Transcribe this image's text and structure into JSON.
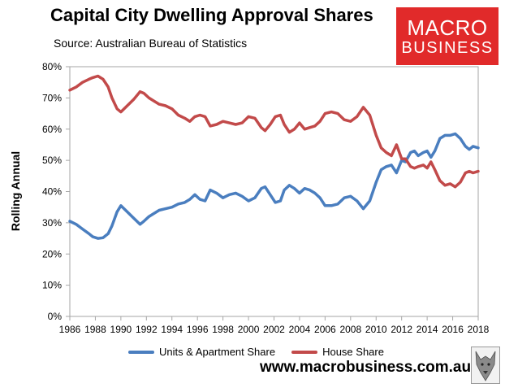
{
  "header": {
    "title": "Capital City Dwelling Approval Shares",
    "source": "Source: Australian Bureau of Statistics"
  },
  "logo": {
    "line1": "MACRO",
    "line2": "BUSINESS",
    "bg_color": "#e12a2a"
  },
  "footer": {
    "website": "www.macrobusiness.com.au"
  },
  "chart_data": {
    "type": "line",
    "title": "Capital City Dwelling Approval Shares",
    "xlabel": "",
    "ylabel": "Rolling Annual",
    "xlim": [
      1986,
      2018
    ],
    "ylim": [
      0,
      80
    ],
    "x_ticks": [
      "1986",
      "1988",
      "1990",
      "1992",
      "1994",
      "1996",
      "1998",
      "2000",
      "2002",
      "2004",
      "2006",
      "2008",
      "2010",
      "2012",
      "2014",
      "2016",
      "2018"
    ],
    "y_ticks": [
      "0%",
      "10%",
      "20%",
      "30%",
      "40%",
      "50%",
      "60%",
      "70%",
      "80%"
    ],
    "grid": false,
    "legend_position": "bottom",
    "series": [
      {
        "name": "Units & Apartment Share",
        "color": "#4a7ebf",
        "x": [
          1986.0,
          1986.5,
          1987.0,
          1987.5,
          1987.8,
          1988.2,
          1988.6,
          1989.0,
          1989.3,
          1989.7,
          1990.0,
          1990.5,
          1991.0,
          1991.5,
          1991.8,
          1992.2,
          1992.6,
          1993.0,
          1993.5,
          1994.0,
          1994.5,
          1995.0,
          1995.4,
          1995.8,
          1996.2,
          1996.6,
          1997.0,
          1997.5,
          1998.0,
          1998.5,
          1999.0,
          1999.5,
          2000.0,
          2000.5,
          2001.0,
          2001.3,
          2001.7,
          2002.1,
          2002.5,
          2002.8,
          2003.2,
          2003.6,
          2004.0,
          2004.4,
          2004.8,
          2005.2,
          2005.6,
          2006.0,
          2006.5,
          2007.0,
          2007.5,
          2008.0,
          2008.5,
          2009.0,
          2009.5,
          2010.0,
          2010.4,
          2010.8,
          2011.2,
          2011.6,
          2012.0,
          2012.3,
          2012.7,
          2013.0,
          2013.3,
          2013.7,
          2014.0,
          2014.3,
          2014.6,
          2015.0,
          2015.4,
          2015.8,
          2016.2,
          2016.6,
          2017.0,
          2017.3,
          2017.6,
          2018.0
        ],
        "values": [
          30.5,
          29.5,
          28.0,
          26.5,
          25.5,
          25.0,
          25.2,
          26.5,
          29.0,
          33.5,
          35.5,
          33.5,
          31.5,
          29.5,
          30.5,
          32.0,
          33.0,
          34.0,
          34.5,
          35.0,
          36.0,
          36.5,
          37.5,
          39.0,
          37.5,
          37.0,
          40.5,
          39.5,
          38.0,
          39.0,
          39.5,
          38.5,
          37.0,
          38.0,
          41.0,
          41.5,
          39.0,
          36.5,
          37.0,
          40.5,
          42.0,
          41.0,
          39.5,
          41.0,
          40.5,
          39.5,
          38.0,
          35.5,
          35.5,
          36.0,
          38.0,
          38.5,
          37.0,
          34.5,
          37.0,
          43.0,
          47.0,
          48.0,
          48.5,
          46.0,
          50.0,
          49.5,
          52.5,
          53.0,
          51.5,
          52.5,
          53.0,
          51.0,
          53.0,
          57.0,
          58.0,
          58.0,
          58.5,
          57.0,
          54.5,
          53.5,
          54.5,
          54.0
        ]
      },
      {
        "name": "House Share",
        "color": "#c24a4a",
        "x": [
          1986.0,
          1986.5,
          1987.0,
          1987.5,
          1987.8,
          1988.2,
          1988.6,
          1989.0,
          1989.3,
          1989.7,
          1990.0,
          1990.5,
          1991.0,
          1991.5,
          1991.8,
          1992.2,
          1992.6,
          1993.0,
          1993.5,
          1994.0,
          1994.5,
          1995.0,
          1995.4,
          1995.8,
          1996.2,
          1996.6,
          1997.0,
          1997.5,
          1998.0,
          1998.5,
          1999.0,
          1999.5,
          2000.0,
          2000.5,
          2001.0,
          2001.3,
          2001.7,
          2002.1,
          2002.5,
          2002.8,
          2003.2,
          2003.6,
          2004.0,
          2004.4,
          2004.8,
          2005.2,
          2005.6,
          2006.0,
          2006.5,
          2007.0,
          2007.5,
          2008.0,
          2008.5,
          2009.0,
          2009.5,
          2010.0,
          2010.4,
          2010.8,
          2011.2,
          2011.6,
          2012.0,
          2012.3,
          2012.7,
          2013.0,
          2013.3,
          2013.7,
          2014.0,
          2014.3,
          2014.6,
          2015.0,
          2015.4,
          2015.8,
          2016.2,
          2016.6,
          2017.0,
          2017.3,
          2017.6,
          2018.0
        ],
        "values": [
          72.5,
          73.5,
          75.0,
          76.0,
          76.5,
          77.0,
          76.0,
          73.5,
          70.0,
          66.5,
          65.5,
          67.5,
          69.5,
          72.0,
          71.5,
          70.0,
          69.0,
          68.0,
          67.5,
          66.5,
          64.5,
          63.5,
          62.5,
          64.0,
          64.5,
          64.0,
          61.0,
          61.5,
          62.5,
          62.0,
          61.5,
          62.0,
          64.0,
          63.5,
          60.5,
          59.5,
          61.5,
          64.0,
          64.5,
          61.5,
          59.0,
          60.0,
          62.0,
          60.0,
          60.5,
          61.0,
          62.5,
          65.0,
          65.5,
          65.0,
          63.0,
          62.5,
          64.0,
          67.0,
          64.5,
          58.0,
          54.0,
          52.5,
          51.5,
          55.0,
          50.5,
          50.5,
          48.0,
          47.5,
          48.0,
          48.5,
          47.5,
          49.5,
          47.0,
          43.5,
          42.0,
          42.5,
          41.5,
          43.0,
          46.0,
          46.5,
          46.0,
          46.5
        ]
      }
    ]
  }
}
